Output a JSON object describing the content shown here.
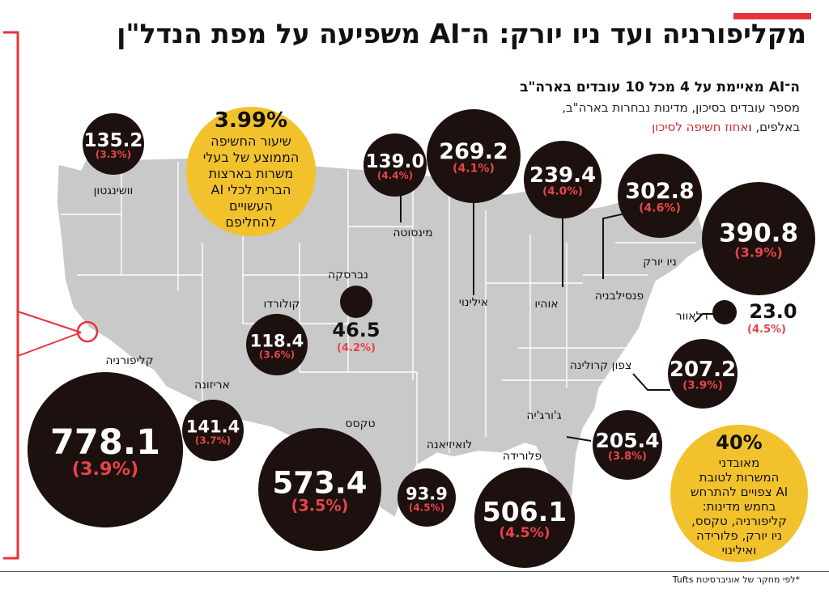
{
  "header": {
    "title": "מקליפורניה ועד ניו יורק: ה־AI משפיעה על מפת הנדל\"ן",
    "subtitle": "ה־AI מאיימת על 4 מכל 10 עובדים בארה\"ב",
    "desc_line1": "מספר עובדים בסיכון, מדינות נבחרות בארה\"ב,",
    "desc_line2_a": "באלפים, ו",
    "desc_line2_b": "אחוז חשיפה לסיכון"
  },
  "footnote": "*לפי מחקר של אוניברסיטת Tufts",
  "colors": {
    "accent": "#e8333a",
    "bubble": "#1c110e",
    "percent": "#e8434a",
    "highlight": "#f2c22d",
    "map": "#c9c9c9"
  },
  "chart_data": {
    "type": "bubble-map",
    "unit": "אלפים",
    "states": [
      {
        "name": "וושינגטון",
        "workers": "135.2",
        "exposure": "(3.3%)"
      },
      {
        "name": "מינסוטה",
        "workers": "139.0",
        "exposure": "(4.4%)"
      },
      {
        "name": "אילינוי",
        "workers": "269.2",
        "exposure": "(4.1%)"
      },
      {
        "name": "אוהיו",
        "workers": "239.4",
        "exposure": "(4.0%)"
      },
      {
        "name": "פנסילבניה",
        "workers": "302.8",
        "exposure": "(4.6%)"
      },
      {
        "name": "ניו יורק",
        "workers": "390.8",
        "exposure": "(3.9%)"
      },
      {
        "name": "נברסקה",
        "workers": "46.5",
        "exposure": "(4.2%)"
      },
      {
        "name": "קולורדו",
        "workers": "118.4",
        "exposure": "(3.6%)"
      },
      {
        "name": "דלאוור",
        "workers": "23.0",
        "exposure": "(4.5%)"
      },
      {
        "name": "צפון קרולינה",
        "workers": "207.2",
        "exposure": "(3.9%)"
      },
      {
        "name": "קליפורניה",
        "workers": "778.1",
        "exposure": "(3.9%)"
      },
      {
        "name": "אריזונה",
        "workers": "141.4",
        "exposure": "(3.7%)"
      },
      {
        "name": "טקסס",
        "workers": "573.4",
        "exposure": "(3.5%)"
      },
      {
        "name": "לואיזיאנה",
        "workers": "93.9",
        "exposure": "(4.5%)"
      },
      {
        "name": "פלורידה",
        "workers": "506.1",
        "exposure": "(4.5%)"
      },
      {
        "name": "ג'ורג'יה",
        "workers": "205.4",
        "exposure": "(3.8%)"
      }
    ],
    "callouts": [
      {
        "big": "3.99%",
        "lines": [
          "שיעור החשיפה",
          "הממוצע של בעלי",
          "משרות בארצות",
          "הברית לכלי AI",
          "העשויים",
          "להחליפם"
        ]
      },
      {
        "big": "40%",
        "lines": [
          "מאובדני",
          "המשרות לטובת",
          "AI צפויים להתרחש",
          "בחמש מדינות:",
          "קליפורניה, טקסס,",
          "ניו יורק, פלורידה",
          "ואילינוי"
        ]
      }
    ]
  }
}
